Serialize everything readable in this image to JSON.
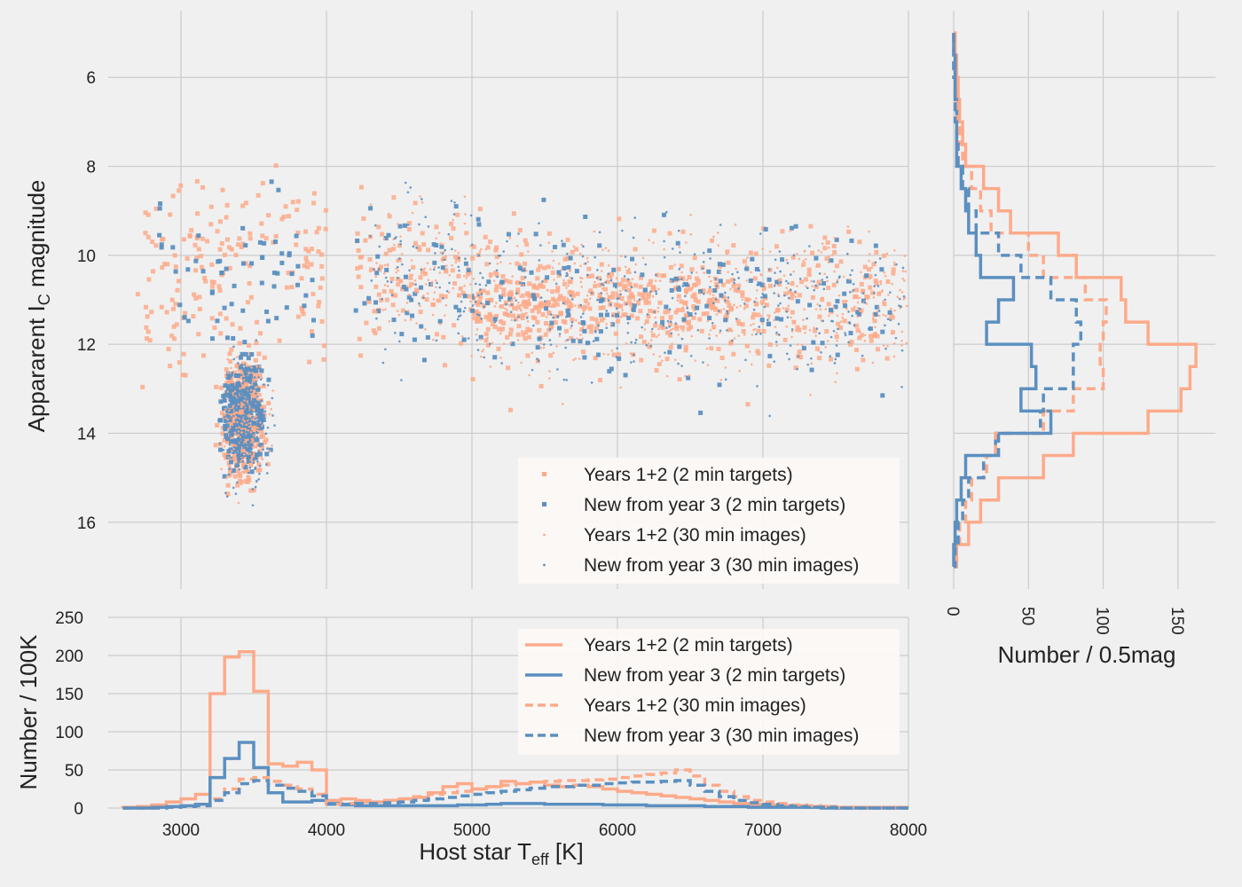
{
  "colors": {
    "background": "#f0f0f0",
    "grid": "#cbcbcb",
    "orange": "#fdaa8a",
    "blue": "#5b8fc0",
    "legend_bg": "#fbf8f6"
  },
  "chart_data": [
    {
      "id": "scatter",
      "type": "scatter",
      "xlabel_main": "Host star T",
      "xlabel_sub": "eff",
      "xlabel_unit": " [K]",
      "ylabel_main": "Appararent I",
      "ylabel_sub": "C",
      "ylabel_rest": " magnitude",
      "xlim": [
        2500,
        8000
      ],
      "ylim": [
        17.5,
        4.5
      ],
      "y_inverted": true,
      "yticks": [
        6,
        8,
        10,
        12,
        14,
        16
      ],
      "xticks": [
        3000,
        4000,
        5000,
        6000,
        7000,
        8000
      ],
      "legend_placement": "bottom-right",
      "series": [
        {
          "name": "Years 1+2 (2 min targets)",
          "color": "#fdaa8a",
          "marker": "square-large",
          "clusters": [
            {
              "teff": [
                3200,
                3650
              ],
              "mag": [
                11.0,
                16.3
              ],
              "count": 380
            },
            {
              "teff": [
                2700,
                4000
              ],
              "mag": [
                6.5,
                16.8
              ],
              "count": 180
            },
            {
              "teff": [
                4200,
                7900
              ],
              "mag": [
                5.9,
                14.0
              ],
              "count": 470
            },
            {
              "teff": [
                5000,
                6800
              ],
              "mag": [
                9.0,
                12.5
              ],
              "count": 200
            }
          ]
        },
        {
          "name": "New from year 3 (2 min targets)",
          "color": "#5b8fc0",
          "marker": "square-large",
          "clusters": [
            {
              "teff": [
                3200,
                3650
              ],
              "mag": [
                11.0,
                16.0
              ],
              "count": 230
            },
            {
              "teff": [
                2850,
                4000
              ],
              "mag": [
                8.5,
                16.6
              ],
              "count": 60
            },
            {
              "teff": [
                4200,
                7900
              ],
              "mag": [
                5.6,
                14.5
              ],
              "count": 190
            }
          ]
        },
        {
          "name": "Years 1+2 (30 min images)",
          "color": "#fdaa8a",
          "marker": "dot-small",
          "clusters": [
            {
              "teff": [
                3200,
                3700
              ],
              "mag": [
                11.0,
                16.5
              ],
              "count": 180
            },
            {
              "teff": [
                4300,
                8000
              ],
              "mag": [
                7.0,
                14.5
              ],
              "count": 620
            }
          ]
        },
        {
          "name": "New from year 3 (30 min images)",
          "color": "#5b8fc0",
          "marker": "dot-small",
          "clusters": [
            {
              "teff": [
                3200,
                3700
              ],
              "mag": [
                11.0,
                16.9
              ],
              "count": 200
            },
            {
              "teff": [
                4300,
                8000
              ],
              "mag": [
                7.0,
                15.2
              ],
              "count": 420
            }
          ]
        }
      ],
      "legend": [
        "Years 1+2 (2 min targets)",
        "New from year 3 (2 min targets)",
        "Years 1+2 (30 min images)",
        "New from year 3 (30 min images)"
      ]
    },
    {
      "id": "teff_hist",
      "type": "step-histogram",
      "xlabel_main": "Host star T",
      "xlabel_sub": "eff",
      "xlabel_unit": " [K]",
      "ylabel": "Number / 100K",
      "xlim": [
        2500,
        8000
      ],
      "ylim": [
        0,
        250
      ],
      "xticks": [
        3000,
        4000,
        5000,
        6000,
        7000,
        8000
      ],
      "yticks": [
        0,
        50,
        100,
        150,
        200,
        250
      ],
      "bin_edges": [
        2600,
        2700,
        2800,
        2900,
        3000,
        3100,
        3200,
        3300,
        3400,
        3500,
        3600,
        3700,
        3800,
        3900,
        4000,
        4100,
        4200,
        4300,
        4400,
        4500,
        4600,
        4700,
        4800,
        4900,
        5000,
        5100,
        5200,
        5300,
        5400,
        5500,
        5600,
        5700,
        5800,
        5900,
        6000,
        6100,
        6200,
        6300,
        6400,
        6500,
        6600,
        6700,
        6800,
        6900,
        7000,
        7100,
        7200,
        7300,
        7400,
        7500,
        7600,
        7700,
        7800,
        7900,
        8000
      ],
      "legend_placement": "top-right",
      "series": [
        {
          "name": "Years 1+2 (2 min targets)",
          "color": "#fdaa8a",
          "style": "solid",
          "values": [
            1,
            2,
            4,
            8,
            12,
            18,
            150,
            198,
            205,
            153,
            58,
            55,
            60,
            50,
            10,
            12,
            10,
            8,
            10,
            12,
            14,
            20,
            28,
            32,
            25,
            28,
            35,
            32,
            34,
            30,
            28,
            30,
            28,
            25,
            22,
            20,
            18,
            16,
            14,
            12,
            10,
            8,
            6,
            5,
            4,
            3,
            3,
            2,
            2,
            1,
            1,
            1,
            1,
            1
          ]
        },
        {
          "name": "New from year 3 (2 min targets)",
          "color": "#5b8fc0",
          "style": "solid",
          "values": [
            0,
            0,
            1,
            2,
            3,
            5,
            40,
            65,
            86,
            53,
            20,
            8,
            8,
            10,
            6,
            4,
            3,
            3,
            3,
            3,
            3,
            3,
            3,
            4,
            4,
            5,
            6,
            6,
            6,
            5,
            5,
            5,
            5,
            4,
            4,
            4,
            3,
            3,
            3,
            3,
            2,
            2,
            2,
            1,
            1,
            1,
            1,
            1,
            0,
            0,
            0,
            0,
            0,
            0
          ]
        },
        {
          "name": "Years 1+2 (30 min images)",
          "color": "#fdaa8a",
          "style": "dashed",
          "values": [
            0,
            0,
            0,
            1,
            2,
            3,
            12,
            25,
            38,
            40,
            35,
            30,
            25,
            18,
            5,
            6,
            8,
            8,
            10,
            12,
            15,
            18,
            20,
            22,
            25,
            28,
            30,
            32,
            34,
            35,
            36,
            36,
            37,
            38,
            40,
            42,
            44,
            46,
            50,
            42,
            30,
            22,
            15,
            10,
            8,
            6,
            4,
            3,
            2,
            1,
            1,
            0,
            0,
            0
          ]
        },
        {
          "name": "New from year 3 (30 min images)",
          "color": "#5b8fc0",
          "style": "dashed",
          "values": [
            0,
            0,
            0,
            1,
            2,
            3,
            10,
            20,
            32,
            36,
            30,
            26,
            22,
            16,
            5,
            5,
            6,
            6,
            7,
            8,
            10,
            12,
            14,
            16,
            18,
            20,
            22,
            24,
            26,
            28,
            28,
            30,
            30,
            32,
            33,
            34,
            34,
            35,
            36,
            30,
            22,
            15,
            10,
            7,
            5,
            3,
            2,
            1,
            1,
            0,
            0,
            0,
            0,
            0
          ]
        }
      ],
      "legend": [
        "Years 1+2 (2 min targets)",
        "New from year 3 (2 min targets)",
        "Years 1+2 (30 min images)",
        "New from year 3 (30 min images)"
      ]
    },
    {
      "id": "mag_hist",
      "type": "step-histogram-horizontal",
      "xlabel": "Number / 0.5mag",
      "xlim": [
        0,
        175
      ],
      "xticks": [
        0,
        50,
        100,
        150
      ],
      "mag_range": [
        4.5,
        17.5
      ],
      "bin_edges": [
        5.0,
        5.5,
        6.0,
        6.5,
        7.0,
        7.5,
        8.0,
        8.5,
        9.0,
        9.5,
        10.0,
        10.5,
        11.0,
        11.5,
        12.0,
        12.5,
        13.0,
        13.5,
        14.0,
        14.5,
        15.0,
        15.5,
        16.0,
        16.5,
        17.0
      ],
      "series": [
        {
          "name": "Years 1+2 (2 min targets)",
          "color": "#fdaa8a",
          "style": "solid",
          "values": [
            1,
            2,
            3,
            4,
            6,
            8,
            20,
            30,
            38,
            70,
            82,
            112,
            115,
            130,
            162,
            158,
            152,
            130,
            80,
            60,
            30,
            18,
            10,
            2
          ]
        },
        {
          "name": "New from year 3 (2 min targets)",
          "color": "#5b8fc0",
          "style": "solid",
          "values": [
            0,
            1,
            1,
            2,
            2,
            2,
            5,
            8,
            10,
            15,
            18,
            40,
            30,
            22,
            52,
            55,
            45,
            65,
            28,
            8,
            5,
            2,
            1,
            0
          ]
        },
        {
          "name": "Years 1+2 (30 min images)",
          "color": "#fdaa8a",
          "style": "dashed",
          "values": [
            0,
            0,
            1,
            2,
            4,
            6,
            12,
            18,
            25,
            50,
            60,
            88,
            102,
            100,
            98,
            100,
            80,
            60,
            28,
            22,
            12,
            8,
            4,
            1
          ]
        },
        {
          "name": "New from year 3 (30 min images)",
          "color": "#5b8fc0",
          "style": "dashed",
          "values": [
            0,
            0,
            1,
            1,
            2,
            3,
            6,
            10,
            15,
            30,
            45,
            65,
            82,
            85,
            80,
            80,
            60,
            58,
            30,
            20,
            10,
            6,
            3,
            1
          ]
        }
      ]
    }
  ]
}
